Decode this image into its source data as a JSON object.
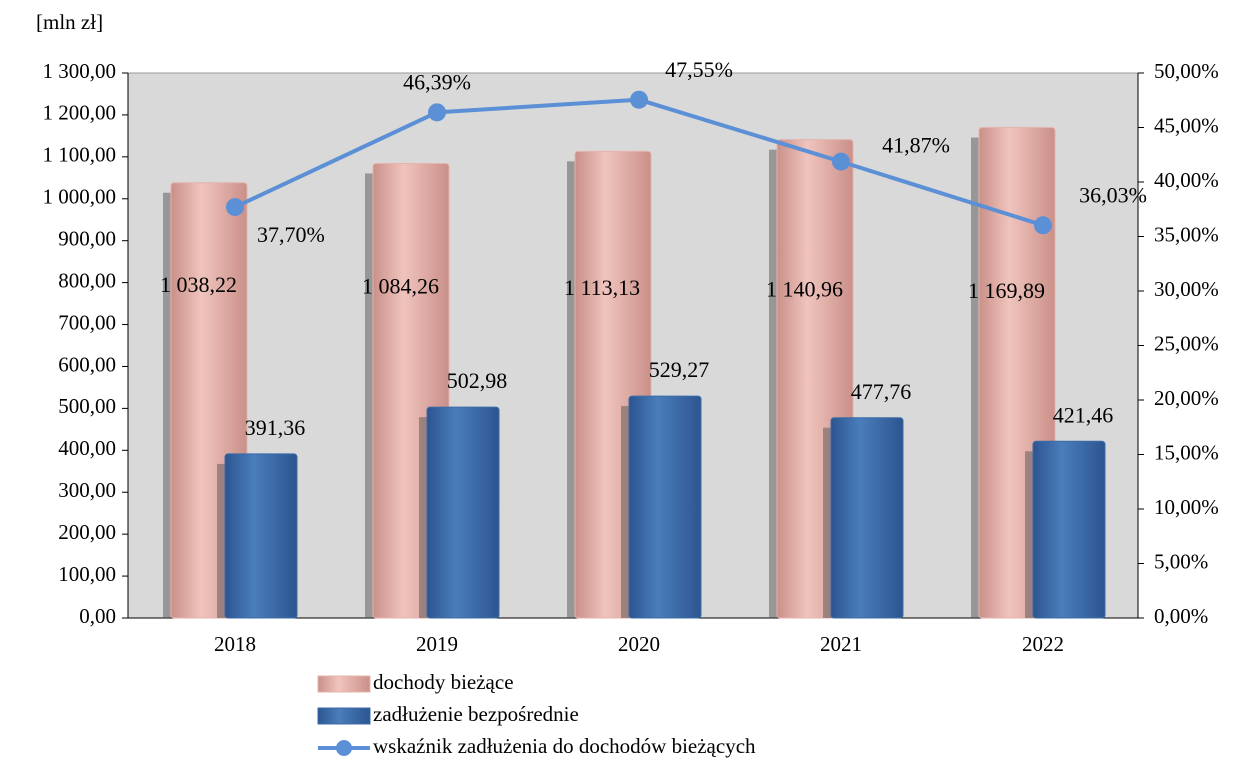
{
  "chart_data": {
    "type": "bar_line",
    "y_label": "[mln zł]",
    "categories": [
      "2018",
      "2019",
      "2020",
      "2021",
      "2022"
    ],
    "series": [
      {
        "name": "dochody bieżące",
        "color": "#e6b3ad",
        "values": [
          1038.22,
          1084.26,
          1113.13,
          1140.96,
          1169.89
        ],
        "value_labels": [
          "1 038,22",
          "1 084,26",
          "1 113,13",
          "1 140,96",
          "1 169,89"
        ]
      },
      {
        "name": "zadłużenie bezpośrednie",
        "color": "#3c6ca8",
        "values": [
          391.36,
          502.98,
          529.27,
          477.76,
          421.46
        ],
        "value_labels": [
          "391,36",
          "502,98",
          "529,27",
          "477,76",
          "421,46"
        ]
      },
      {
        "name": "wskaźnik zadłużenia do dochodów bieżących",
        "color": "#5b8fd6",
        "axis": "y2",
        "type": "line",
        "values": [
          37.7,
          46.39,
          47.55,
          41.87,
          36.03
        ],
        "value_labels": [
          "37,70%",
          "46,39%",
          "47,55%",
          "41,87%",
          "36,03%"
        ]
      }
    ],
    "ylim": [
      0,
      1300
    ],
    "yticks": [
      {
        "value": 0,
        "label": "0,00"
      },
      {
        "value": 100,
        "label": "100,00"
      },
      {
        "value": 200,
        "label": "200,00"
      },
      {
        "value": 300,
        "label": "300,00"
      },
      {
        "value": 400,
        "label": "400,00"
      },
      {
        "value": 500,
        "label": "500,00"
      },
      {
        "value": 600,
        "label": "600,00"
      },
      {
        "value": 700,
        "label": "700,00"
      },
      {
        "value": 800,
        "label": "800,00"
      },
      {
        "value": 900,
        "label": "900,00"
      },
      {
        "value": 1000,
        "label": "1 000,00"
      },
      {
        "value": 1100,
        "label": "1 100,00"
      },
      {
        "value": 1200,
        "label": "1 200,00"
      },
      {
        "value": 1300,
        "label": "1 300,00"
      }
    ],
    "y2lim": [
      0,
      50
    ],
    "y2ticks": [
      {
        "value": 0,
        "label": "0,00%"
      },
      {
        "value": 5,
        "label": "5,00%"
      },
      {
        "value": 10,
        "label": "10,00%"
      },
      {
        "value": 15,
        "label": "15,00%"
      },
      {
        "value": 20,
        "label": "20,00%"
      },
      {
        "value": 25,
        "label": "25,00%"
      },
      {
        "value": 30,
        "label": "30,00%"
      },
      {
        "value": 35,
        "label": "35,00%"
      },
      {
        "value": 40,
        "label": "40,00%"
      },
      {
        "value": 45,
        "label": "45,00%"
      },
      {
        "value": 50,
        "label": "50,00%"
      }
    ]
  }
}
